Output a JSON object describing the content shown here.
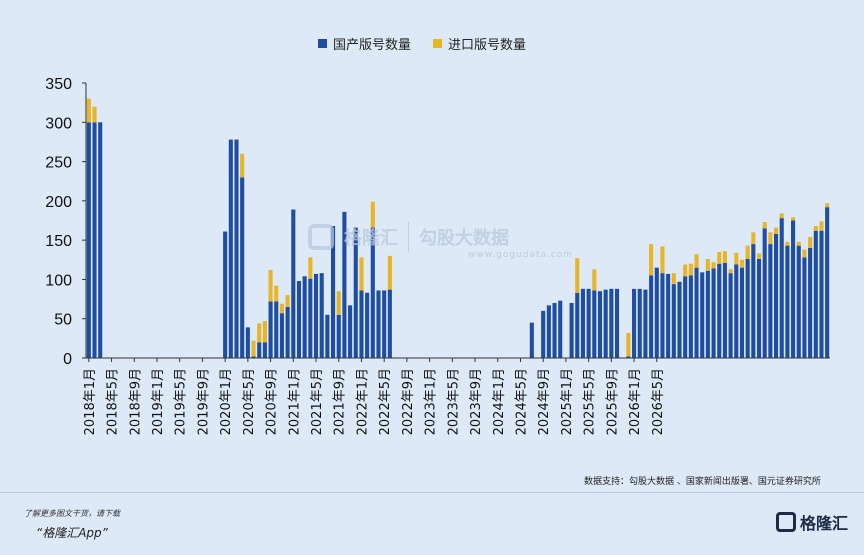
{
  "chart_data": {
    "type": "bar",
    "stacked": true,
    "legend": "top-center",
    "series": [
      {
        "name": "国产版号数量",
        "color": "#1f4ea1",
        "values": [
          300,
          300,
          300,
          0,
          0,
          0,
          0,
          0,
          0,
          0,
          0,
          0,
          0,
          0,
          0,
          0,
          0,
          0,
          0,
          0,
          0,
          0,
          0,
          0,
          161,
          278,
          278,
          230,
          39,
          2,
          20,
          20,
          72,
          72,
          57,
          65,
          189,
          98,
          104,
          101,
          107,
          108,
          55,
          168,
          55,
          186,
          67,
          166,
          86,
          83,
          166,
          86,
          86,
          87,
          0,
          0,
          0,
          0,
          0,
          0,
          0,
          0,
          0,
          0,
          0,
          0,
          0,
          0,
          0,
          0,
          0,
          0,
          0,
          0,
          0,
          0,
          0,
          0,
          45,
          0,
          60,
          67,
          70,
          73,
          0,
          70,
          83,
          88,
          88,
          86,
          85,
          87,
          88,
          88,
          0,
          2,
          88,
          88,
          87,
          105,
          115,
          108,
          107,
          94,
          97,
          104,
          105,
          115,
          109,
          111,
          114,
          120,
          121,
          108,
          119,
          115,
          126,
          145,
          126,
          165,
          145,
          158,
          178,
          143,
          175,
          143,
          128,
          140,
          162,
          162,
          192
        ]
      },
      {
        "name": "进口版号数量",
        "color": "#e8b527",
        "values": [
          30,
          20,
          0,
          0,
          0,
          0,
          0,
          0,
          0,
          0,
          0,
          0,
          0,
          0,
          0,
          0,
          0,
          0,
          0,
          0,
          0,
          0,
          0,
          0,
          0,
          0,
          0,
          30,
          0,
          20,
          24,
          27,
          40,
          20,
          12,
          15,
          0,
          0,
          0,
          27,
          0,
          0,
          0,
          0,
          30,
          0,
          0,
          0,
          42,
          0,
          33,
          0,
          0,
          43,
          0,
          0,
          0,
          0,
          0,
          0,
          0,
          0,
          0,
          0,
          0,
          0,
          0,
          0,
          0,
          0,
          0,
          0,
          0,
          0,
          0,
          0,
          0,
          0,
          0,
          0,
          0,
          0,
          0,
          0,
          0,
          0,
          44,
          0,
          0,
          27,
          0,
          0,
          0,
          0,
          0,
          30,
          0,
          0,
          0,
          40,
          0,
          34,
          0,
          14,
          0,
          15,
          15,
          17,
          0,
          15,
          8,
          15,
          15,
          5,
          15,
          10,
          17,
          15,
          7,
          8,
          15,
          8,
          6,
          5,
          4,
          5,
          10,
          14,
          6,
          12,
          5
        ]
      }
    ],
    "x_tick_labels": [
      "2018年1月",
      "2018年5月",
      "2018年9月",
      "2019年1月",
      "2019年5月",
      "2019年9月",
      "2020年1月",
      "2020年5月",
      "2020年9月",
      "2021年1月",
      "2021年5月",
      "2021年9月",
      "2022年1月",
      "2022年5月",
      "2022年9月",
      "2023年1月",
      "2023年5月",
      "2023年9月",
      "2024年1月",
      "2024年5月",
      "2024年9月",
      "2025年1月",
      "2025年5月",
      "2025年9月",
      "2026年1月",
      "2026年5月"
    ],
    "y_ticks": [
      0,
      50,
      100,
      150,
      200,
      250,
      300,
      350
    ],
    "ylim": [
      0,
      350
    ],
    "grid": false
  },
  "source_text": "数据支持：勾股大数据 、国家新闻出版署、国元证券研究所",
  "watermark": {
    "brand": "格隆汇",
    "sub": "勾股大数据",
    "url": "www.gogudata.com"
  },
  "footer": {
    "note": "了解更多图文干货，请下载",
    "app": "“格隆汇App”",
    "logo": "格隆汇"
  }
}
